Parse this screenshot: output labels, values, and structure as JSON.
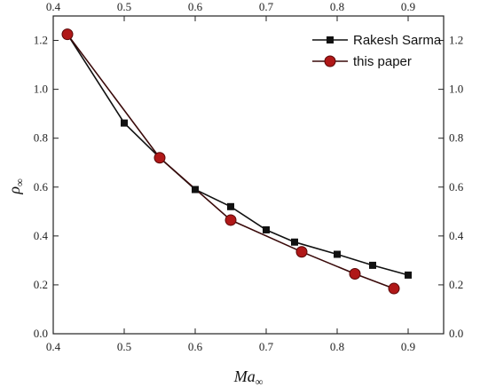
{
  "chart_data": {
    "type": "line",
    "xlabel": "Ma",
    "xlabel_sub": "∞",
    "ylabel": "ρ",
    "ylabel_sub": "∞",
    "xlim": [
      0.4,
      0.95
    ],
    "ylim": [
      0.0,
      1.3
    ],
    "xticks": [
      "0.4",
      "0.5",
      "0.6",
      "0.7",
      "0.8",
      "0.9"
    ],
    "yticks": [
      "0.0",
      "0.2",
      "0.4",
      "0.6",
      "0.8",
      "1.0",
      "1.2"
    ],
    "grid": false,
    "legend_position": "top-right",
    "series": [
      {
        "name": "Rakesh Sarma",
        "marker": "square",
        "color": "#111111",
        "x": [
          0.42,
          0.5,
          0.55,
          0.6,
          0.65,
          0.7,
          0.74,
          0.8,
          0.85,
          0.9
        ],
        "y": [
          1.225,
          0.862,
          0.72,
          0.59,
          0.52,
          0.425,
          0.375,
          0.325,
          0.28,
          0.24
        ]
      },
      {
        "name": "this paper",
        "marker": "circle",
        "color": "#b01818",
        "line_color": "#3a0a0a",
        "x": [
          0.42,
          0.55,
          0.65,
          0.75,
          0.825,
          0.88
        ],
        "y": [
          1.225,
          0.72,
          0.465,
          0.335,
          0.245,
          0.185
        ]
      }
    ]
  }
}
